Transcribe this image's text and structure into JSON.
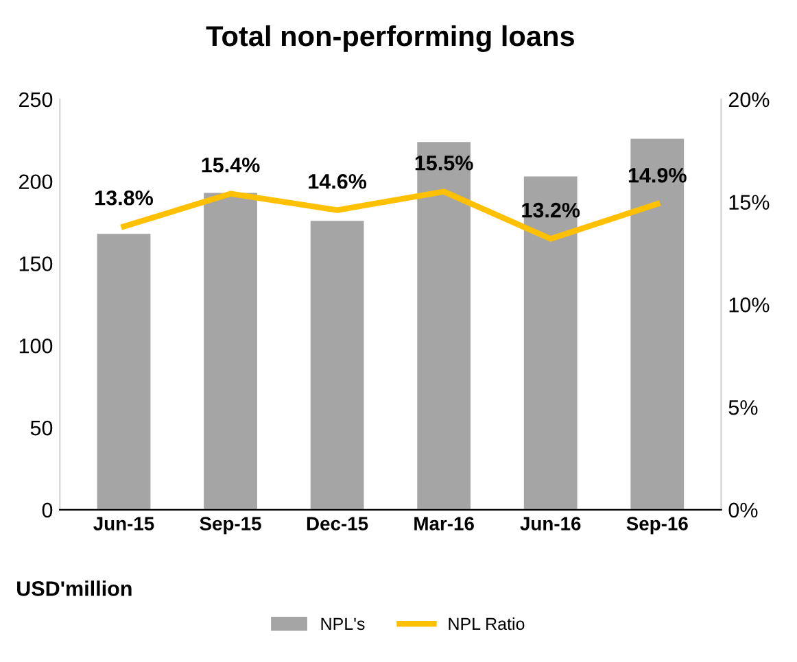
{
  "chart_data": {
    "type": "bar",
    "title": "Total non-performing loans",
    "categories": [
      "Jun-15",
      "Sep-15",
      "Dec-15",
      "Mar-16",
      "Jun-16",
      "Sep-16"
    ],
    "series": [
      {
        "name": "NPL's",
        "color": "#a5a5a5",
        "values": [
          168,
          193,
          176,
          224,
          203,
          226
        ]
      },
      {
        "name": "NPL Ratio",
        "type": "line",
        "axis": "y2",
        "color": "#ffc000",
        "values": [
          13.8,
          15.4,
          14.6,
          15.5,
          13.2,
          14.9
        ],
        "value_labels": [
          "13.8%",
          "15.4%",
          "14.6%",
          "15.5%",
          "13.2%",
          "14.9%"
        ]
      }
    ],
    "ylim": [
      0,
      250
    ],
    "yticks": [
      0,
      50,
      100,
      150,
      200,
      250
    ],
    "y2lim": [
      0,
      20
    ],
    "y2ticks": [
      {
        "value": 0,
        "label": "0%"
      },
      {
        "value": 5,
        "label": "5%"
      },
      {
        "value": 10,
        "label": "10%"
      },
      {
        "value": 15,
        "label": "15%"
      },
      {
        "value": 20,
        "label": "20%"
      }
    ],
    "annotations": [
      "USD'million"
    ],
    "legend": "bottom",
    "grid": false
  }
}
